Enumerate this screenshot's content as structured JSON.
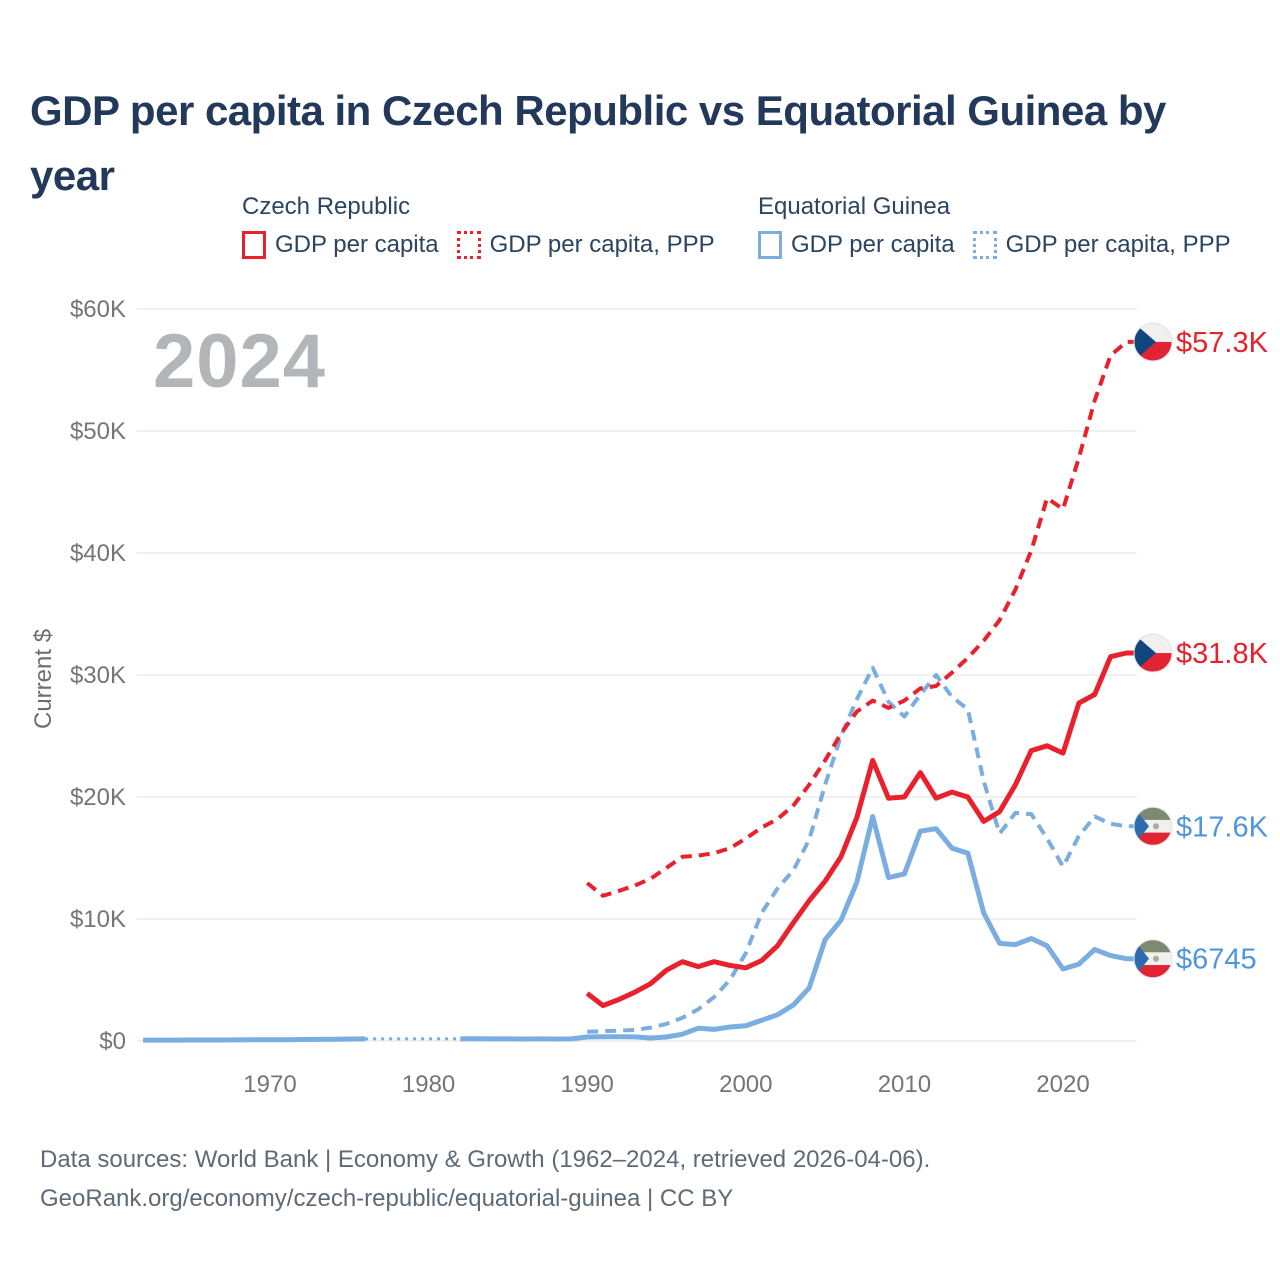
{
  "header": {
    "title": "GDP per capita in Czech Republic vs Equatorial Guinea by year"
  },
  "legend": {
    "groups": [
      {
        "title": "Czech Republic",
        "items": [
          {
            "label": "GDP per capita",
            "style": "solid",
            "color": "#e8212c"
          },
          {
            "label": "GDP per capita, PPP",
            "style": "dotted",
            "color": "#e8212c"
          }
        ]
      },
      {
        "title": "Equatorial Guinea",
        "items": [
          {
            "label": "GDP per capita",
            "style": "solid",
            "color": "#7aade0"
          },
          {
            "label": "GDP per capita, PPP",
            "style": "dotted",
            "color": "#7aade0"
          }
        ]
      }
    ]
  },
  "watermark": "2024",
  "ylabel": "Current $",
  "footer": {
    "line1": "Data sources: World Bank | Economy & Growth (1962–2024, retrieved 2026-04-06).",
    "line2": "GeoRank.org/economy/czech-republic/equatorial-guinea | CC BY"
  },
  "colors": {
    "czech": "#e8212c",
    "equatorial_guinea": "#7aade0",
    "eg_label_blue": "#4f97dd",
    "title_navy": "#22395b",
    "axis_gray": "#757575",
    "grid_gray": "#ececec",
    "watermark_gray": "#b3b6b9",
    "footer_gray": "#5e6a75"
  },
  "chart_data": {
    "type": "line",
    "title": "GDP per capita in Czech Republic vs Equatorial Guinea by year",
    "xlabel": "",
    "ylabel": "Current $",
    "ylim": [
      0,
      60000
    ],
    "xlim": [
      1961.5,
      2025.5
    ],
    "grid": true,
    "legend_position": "top",
    "watermark": "2024",
    "axis_color": "#757575",
    "grid_color": "#ececec",
    "yticks": [
      {
        "value": 0,
        "label": "$0"
      },
      {
        "value": 10000,
        "label": "$10K"
      },
      {
        "value": 20000,
        "label": "$20K"
      },
      {
        "value": 30000,
        "label": "$30K"
      },
      {
        "value": 40000,
        "label": "$40K"
      },
      {
        "value": 50000,
        "label": "$50K"
      },
      {
        "value": 60000,
        "label": "$60K"
      }
    ],
    "xticks": [
      1970,
      1980,
      1990,
      2000,
      2010,
      2020
    ],
    "series": [
      {
        "id": "eg-gdp",
        "name": "Equatorial Guinea GDP per capita",
        "color": "#7aade0",
        "label_color": "#4f97dd",
        "dash": "solid",
        "flag": "gq",
        "end_label": "$6745",
        "end_value": 6745,
        "points": [
          [
            1962,
            70
          ],
          [
            1963,
            72
          ],
          [
            1964,
            75
          ],
          [
            1965,
            78
          ],
          [
            1966,
            82
          ],
          [
            1967,
            86
          ],
          [
            1968,
            90
          ],
          [
            1969,
            95
          ],
          [
            1970,
            100
          ],
          [
            1971,
            110
          ],
          [
            1972,
            120
          ],
          [
            1973,
            135
          ],
          [
            1974,
            150
          ],
          [
            1975,
            165
          ],
          [
            1976,
            175
          ],
          [
            1977,
            null
          ],
          [
            1978,
            null
          ],
          [
            1979,
            null
          ],
          [
            1980,
            null
          ],
          [
            1981,
            null
          ],
          [
            1982,
            185
          ],
          [
            1983,
            180
          ],
          [
            1984,
            175
          ],
          [
            1985,
            170
          ],
          [
            1986,
            165
          ],
          [
            1987,
            170
          ],
          [
            1988,
            168
          ],
          [
            1989,
            172
          ],
          [
            1990,
            330
          ],
          [
            1991,
            345
          ],
          [
            1992,
            352
          ],
          [
            1993,
            340
          ],
          [
            1994,
            245
          ],
          [
            1995,
            330
          ],
          [
            1996,
            560
          ],
          [
            1997,
            1050
          ],
          [
            1998,
            950
          ],
          [
            1999,
            1150
          ],
          [
            2000,
            1250
          ],
          [
            2001,
            1700
          ],
          [
            2002,
            2150
          ],
          [
            2003,
            2950
          ],
          [
            2004,
            4350
          ],
          [
            2005,
            8300
          ],
          [
            2006,
            9900
          ],
          [
            2007,
            13000
          ],
          [
            2008,
            18400
          ],
          [
            2009,
            13400
          ],
          [
            2010,
            13700
          ],
          [
            2011,
            17200
          ],
          [
            2012,
            17400
          ],
          [
            2013,
            15800
          ],
          [
            2014,
            15400
          ],
          [
            2015,
            10500
          ],
          [
            2016,
            8000
          ],
          [
            2017,
            7900
          ],
          [
            2018,
            8400
          ],
          [
            2019,
            7800
          ],
          [
            2020,
            5900
          ],
          [
            2021,
            6300
          ],
          [
            2022,
            7500
          ],
          [
            2023,
            7000
          ],
          [
            2024,
            6745
          ]
        ]
      },
      {
        "id": "eg-gdp-ppp",
        "name": "Equatorial Guinea GDP per capita, PPP",
        "color": "#7aade0",
        "label_color": "#4f97dd",
        "dash": "dashed",
        "flag": "gq",
        "end_label": "$17.6K",
        "end_value": 17600,
        "points": [
          [
            1990,
            750
          ],
          [
            1991,
            800
          ],
          [
            1992,
            850
          ],
          [
            1993,
            900
          ],
          [
            1994,
            1100
          ],
          [
            1995,
            1400
          ],
          [
            1996,
            1900
          ],
          [
            1997,
            2600
          ],
          [
            1998,
            3600
          ],
          [
            1999,
            5000
          ],
          [
            2000,
            7200
          ],
          [
            2001,
            10500
          ],
          [
            2002,
            12500
          ],
          [
            2003,
            14000
          ],
          [
            2004,
            16500
          ],
          [
            2005,
            21000
          ],
          [
            2006,
            25000
          ],
          [
            2007,
            28000
          ],
          [
            2008,
            30600
          ],
          [
            2009,
            27800
          ],
          [
            2010,
            26600
          ],
          [
            2011,
            28400
          ],
          [
            2012,
            30000
          ],
          [
            2013,
            28200
          ],
          [
            2014,
            27200
          ],
          [
            2015,
            21300
          ],
          [
            2016,
            17000
          ],
          [
            2017,
            18700
          ],
          [
            2018,
            18600
          ],
          [
            2019,
            16600
          ],
          [
            2020,
            14300
          ],
          [
            2021,
            16800
          ],
          [
            2022,
            18400
          ],
          [
            2023,
            17800
          ],
          [
            2024,
            17600
          ]
        ]
      },
      {
        "id": "czech-gdp-ppp",
        "name": "Czech Republic GDP per capita, PPP",
        "color": "#e8212c",
        "label_color": "#e8212c",
        "dash": "dashed",
        "flag": "cz",
        "end_label": "$57.3K",
        "end_value": 57300,
        "points": [
          [
            1990,
            12950
          ],
          [
            1991,
            11900
          ],
          [
            1992,
            12300
          ],
          [
            1993,
            12750
          ],
          [
            1994,
            13300
          ],
          [
            1995,
            14200
          ],
          [
            1996,
            15100
          ],
          [
            1997,
            15200
          ],
          [
            1998,
            15400
          ],
          [
            1999,
            15800
          ],
          [
            2000,
            16600
          ],
          [
            2001,
            17500
          ],
          [
            2002,
            18200
          ],
          [
            2003,
            19300
          ],
          [
            2004,
            21000
          ],
          [
            2005,
            23000
          ],
          [
            2006,
            25200
          ],
          [
            2007,
            27000
          ],
          [
            2008,
            27900
          ],
          [
            2009,
            27300
          ],
          [
            2010,
            27900
          ],
          [
            2011,
            28900
          ],
          [
            2012,
            29100
          ],
          [
            2013,
            30200
          ],
          [
            2014,
            31400
          ],
          [
            2015,
            32800
          ],
          [
            2016,
            34500
          ],
          [
            2017,
            37000
          ],
          [
            2018,
            40200
          ],
          [
            2019,
            44500
          ],
          [
            2020,
            43600
          ],
          [
            2021,
            47800
          ],
          [
            2022,
            52500
          ],
          [
            2023,
            56200
          ],
          [
            2024,
            57300
          ]
        ]
      },
      {
        "id": "czech-gdp",
        "name": "Czech Republic GDP per capita",
        "color": "#e8212c",
        "label_color": "#e8212c",
        "dash": "solid",
        "flag": "cz",
        "end_label": "$31.8K",
        "end_value": 31800,
        "points": [
          [
            1990,
            3900
          ],
          [
            1991,
            2900
          ],
          [
            1992,
            3400
          ],
          [
            1993,
            4000
          ],
          [
            1994,
            4700
          ],
          [
            1995,
            5800
          ],
          [
            1996,
            6500
          ],
          [
            1997,
            6100
          ],
          [
            1998,
            6500
          ],
          [
            1999,
            6200
          ],
          [
            2000,
            6000
          ],
          [
            2001,
            6600
          ],
          [
            2002,
            7800
          ],
          [
            2003,
            9700
          ],
          [
            2004,
            11500
          ],
          [
            2005,
            13100
          ],
          [
            2006,
            15100
          ],
          [
            2007,
            18300
          ],
          [
            2008,
            23000
          ],
          [
            2009,
            19900
          ],
          [
            2010,
            20000
          ],
          [
            2011,
            22000
          ],
          [
            2012,
            19900
          ],
          [
            2013,
            20400
          ],
          [
            2014,
            20000
          ],
          [
            2015,
            18000
          ],
          [
            2016,
            18800
          ],
          [
            2017,
            21000
          ],
          [
            2018,
            23800
          ],
          [
            2019,
            24200
          ],
          [
            2020,
            23600
          ],
          [
            2021,
            27700
          ],
          [
            2022,
            28400
          ],
          [
            2023,
            31500
          ],
          [
            2024,
            31800
          ]
        ]
      }
    ]
  }
}
